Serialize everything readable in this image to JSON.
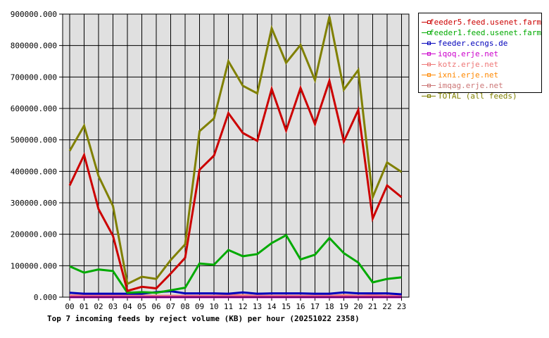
{
  "chart_data": {
    "type": "line",
    "title": "Top 7 incoming feeds by reject volume (KB) per hour (20251022 2358)",
    "xlabel": "",
    "ylabel": "",
    "ylim": [
      0,
      900000
    ],
    "grid": true,
    "legend_position": "right",
    "yticks": [
      "0.000",
      "100000.000",
      "200000.000",
      "300000.000",
      "400000.000",
      "500000.000",
      "600000.000",
      "700000.000",
      "800000.000",
      "900000.000"
    ],
    "categories": [
      "00",
      "01",
      "02",
      "03",
      "04",
      "05",
      "06",
      "07",
      "08",
      "09",
      "10",
      "11",
      "12",
      "13",
      "14",
      "15",
      "16",
      "17",
      "18",
      "19",
      "20",
      "21",
      "22",
      "23"
    ],
    "series": [
      {
        "name": "feeder5.feed.usenet.farm",
        "color": "#cc0000",
        "values": [
          355000,
          452000,
          280000,
          195000,
          20000,
          33000,
          28000,
          75000,
          125000,
          405000,
          450000,
          585000,
          522000,
          497000,
          662000,
          530000,
          665000,
          550000,
          688000,
          495000,
          595000,
          250000,
          355000,
          318000
        ]
      },
      {
        "name": "feeder1.feed.usenet.farm",
        "color": "#00aa00",
        "values": [
          98000,
          78000,
          88000,
          83000,
          14000,
          16000,
          14000,
          22000,
          30000,
          107000,
          103000,
          150000,
          130000,
          137000,
          172000,
          197000,
          120000,
          135000,
          188000,
          140000,
          110000,
          47000,
          58000,
          63000
        ]
      },
      {
        "name": "feeder.ecngs.de",
        "color": "#0000bb",
        "values": [
          14000,
          11000,
          11000,
          11000,
          11000,
          11000,
          16000,
          19000,
          12000,
          12000,
          12000,
          11000,
          15000,
          11000,
          12000,
          12000,
          12000,
          11000,
          11000,
          15000,
          12000,
          12000,
          12000,
          9000
        ]
      },
      {
        "name": "iqoq.erje.net",
        "color": "#cc00cc",
        "values": [
          0,
          0,
          0,
          0,
          0,
          0,
          0,
          0,
          0,
          0,
          0,
          0,
          0,
          0,
          0,
          0,
          0,
          0,
          0,
          0,
          0,
          0,
          0,
          0
        ]
      },
      {
        "name": "kotz.erje.net",
        "color": "#ee7777",
        "values": [
          5000,
          5000,
          5000,
          5000,
          4000,
          4000,
          4000,
          4000,
          4000,
          4000,
          4000,
          6000,
          6000,
          4000,
          4000,
          4000,
          4000,
          4000,
          4000,
          6000,
          4000,
          6000,
          4000,
          4000
        ]
      },
      {
        "name": "ixni.erje.net",
        "color": "#ff8800",
        "values": [
          3000,
          1000,
          3000,
          3000,
          3000,
          3000,
          3000,
          3000,
          3000,
          3000,
          3000,
          3000,
          3000,
          3000,
          3000,
          3000,
          3000,
          3000,
          1000,
          3000,
          3000,
          3000,
          3000,
          1000
        ]
      },
      {
        "name": "imqag.erje.net",
        "color": "#cc7777",
        "values": [
          4000,
          4000,
          4000,
          4000,
          4000,
          4000,
          4000,
          4000,
          4000,
          4000,
          4000,
          4000,
          4000,
          4000,
          4000,
          4000,
          4000,
          4000,
          4000,
          4000,
          4000,
          4000,
          4000,
          4000
        ]
      },
      {
        "name": "TOTAL (all feeds)",
        "color": "#808000",
        "values": [
          465000,
          545000,
          385000,
          290000,
          42000,
          65000,
          58000,
          118000,
          168000,
          528000,
          568000,
          750000,
          672000,
          648000,
          855000,
          745000,
          802000,
          690000,
          892000,
          660000,
          722000,
          318000,
          428000,
          398000
        ]
      }
    ]
  },
  "legend": {
    "items": [
      {
        "label": "feeder5.feed.usenet.farm",
        "color": "#cc0000"
      },
      {
        "label": "feeder1.feed.usenet.farm",
        "color": "#00aa00"
      },
      {
        "label": "feeder.ecngs.de",
        "color": "#0000bb"
      },
      {
        "label": "iqoq.erje.net",
        "color": "#cc00cc"
      },
      {
        "label": "kotz.erje.net",
        "color": "#ee7777"
      },
      {
        "label": "ixni.erje.net",
        "color": "#ff8800"
      },
      {
        "label": "imqag.erje.net",
        "color": "#cc7777"
      },
      {
        "label": "TOTAL (all feeds)",
        "color": "#808000"
      }
    ]
  },
  "colors": {
    "plot_bg": "#e0e0e0",
    "grid": "#000000",
    "axis": "#000000"
  }
}
